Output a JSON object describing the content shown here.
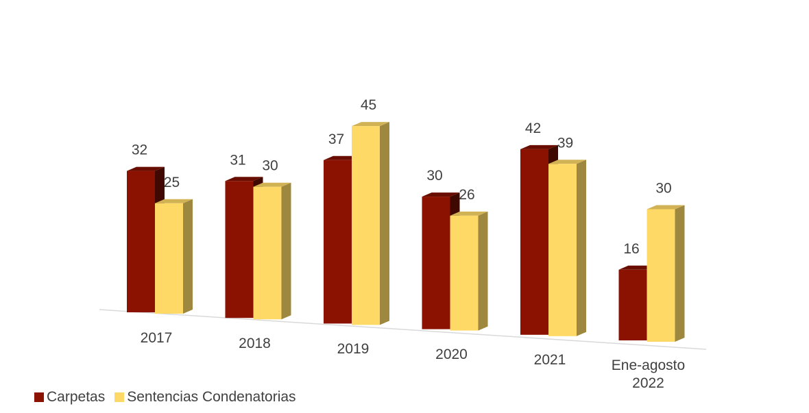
{
  "chart_data": {
    "type": "bar",
    "categories": [
      "2017",
      "2018",
      "2019",
      "2020",
      "2021",
      "Ene-agosto 2022"
    ],
    "category_lines": [
      [
        "2017"
      ],
      [
        "2018"
      ],
      [
        "2019"
      ],
      [
        "2020"
      ],
      [
        "2021"
      ],
      [
        "Ene-agosto",
        "2022"
      ]
    ],
    "series": [
      {
        "name": "Carpetas",
        "values": [
          32,
          31,
          37,
          30,
          42,
          16
        ],
        "color": "#8b1100"
      },
      {
        "name": "Sentencias Condenatorias",
        "values": [
          25,
          30,
          45,
          26,
          39,
          30
        ],
        "color": "#ffd966"
      }
    ],
    "title": "",
    "xlabel": "",
    "ylabel": "",
    "ylim": [
      0,
      50
    ],
    "grid": false,
    "legend_position": "bottom-left",
    "style": "3d-clustered-column"
  },
  "legend": {
    "items": [
      {
        "label": "Carpetas",
        "color": "#8b1100"
      },
      {
        "label": "Sentencias Condenatorias",
        "color": "#ffd966"
      }
    ]
  }
}
